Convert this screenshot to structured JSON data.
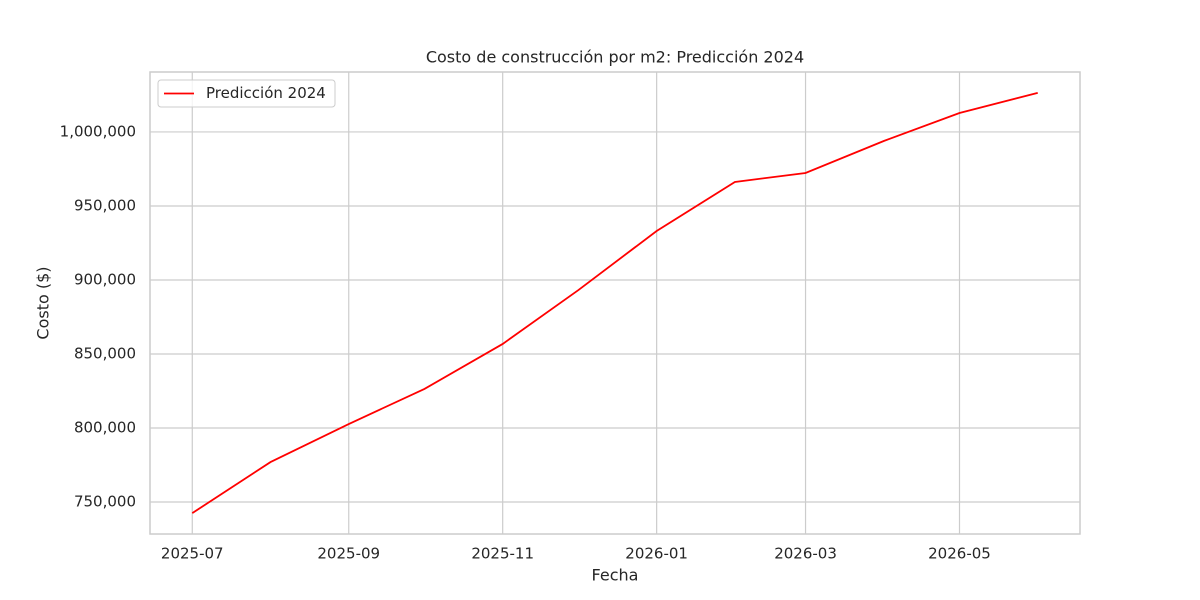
{
  "chart_data": {
    "type": "line",
    "title": "Costo de construcción por m2: Predicción 2024",
    "x_label": "Fecha",
    "y_label": "Costo ($)",
    "x": [
      "2025-07",
      "2025-08",
      "2025-09",
      "2025-10",
      "2025-11",
      "2025-12",
      "2026-01",
      "2026-02",
      "2026-03",
      "2026-04",
      "2026-05",
      "2026-06"
    ],
    "series": [
      {
        "name": "Predicción 2024",
        "color": "#ff0000",
        "values": [
          742500,
          777000,
          802700,
          826400,
          856800,
          893200,
          933100,
          966200,
          972300,
          993900,
          1012800,
          1026400
        ]
      }
    ],
    "xticks": [
      "2025-07",
      "2025-09",
      "2025-11",
      "2026-01",
      "2026-03",
      "2026-05"
    ],
    "ylim": [
      728400,
      1040500
    ],
    "yticks": [
      {
        "value": 750000,
        "label": "750,000"
      },
      {
        "value": 800000,
        "label": "800,000"
      },
      {
        "value": 850000,
        "label": "850,000"
      },
      {
        "value": 900000,
        "label": "900,000"
      },
      {
        "value": 950000,
        "label": "950,000"
      },
      {
        "value": 1000000,
        "label": "1,000,000"
      }
    ],
    "grid": true,
    "legend": "upper left"
  }
}
